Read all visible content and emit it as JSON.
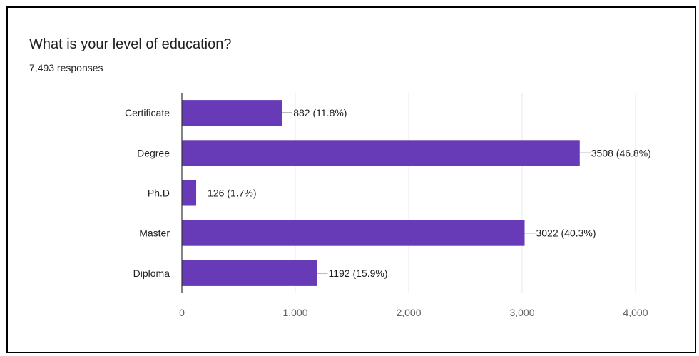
{
  "question": "What is your level of education?",
  "responses": "7,493 responses",
  "colors": {
    "bar": "#673ab7",
    "grid": "#e8e8e8",
    "axis": "#333333",
    "text": "#202124",
    "tick": "#5f6368"
  },
  "chart_data": {
    "type": "bar",
    "orientation": "horizontal",
    "categories": [
      "Certificate",
      "Degree",
      "Ph.D",
      "Master",
      "Diploma"
    ],
    "values": [
      882,
      3508,
      126,
      3022,
      1192
    ],
    "data_labels": [
      "882 (11.8%)",
      "3508 (46.8%)",
      "126 (1.7%)",
      "3022 (40.3%)",
      "1192 (15.9%)"
    ],
    "x_ticks": [
      0,
      1000,
      2000,
      3000,
      4000
    ],
    "x_tick_labels": [
      "0",
      "1,000",
      "2,000",
      "3,000",
      "4,000"
    ],
    "xlim": [
      0,
      4000
    ],
    "grid": true
  }
}
